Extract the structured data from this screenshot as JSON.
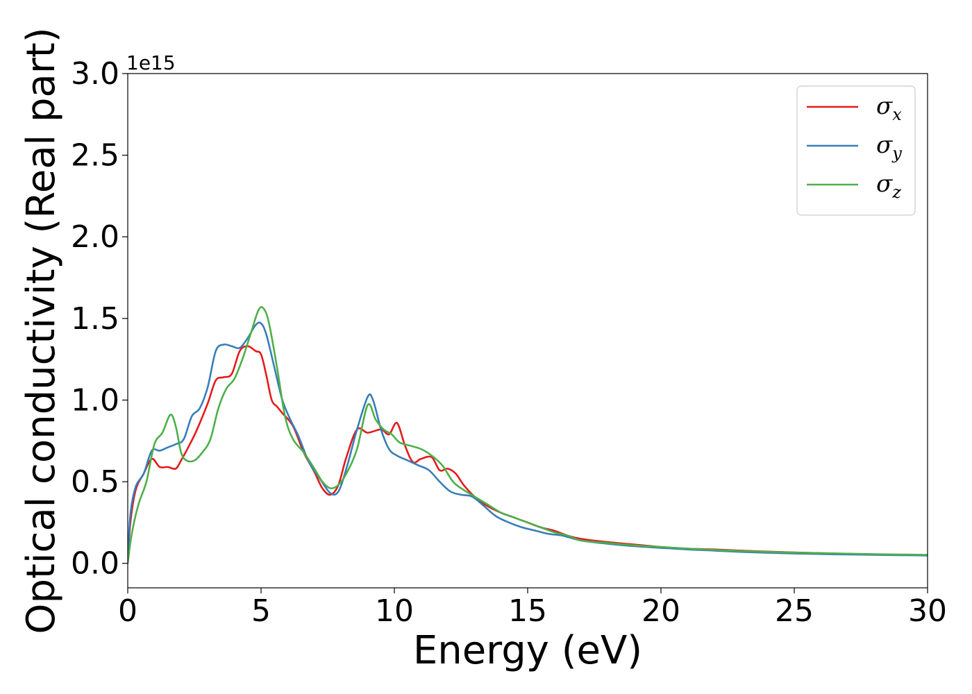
{
  "chart_data": {
    "type": "line",
    "title": "",
    "xlabel": "Energy (eV)",
    "ylabel": "Optical conductivity (Real part)",
    "y_offset_label": "1e15",
    "xlim": [
      0,
      30
    ],
    "ylim": [
      -0.15,
      3.0
    ],
    "x_ticks": [
      0,
      5,
      10,
      15,
      20,
      25,
      30
    ],
    "x_tick_labels": [
      "0",
      "5",
      "10",
      "15",
      "20",
      "25",
      "30"
    ],
    "y_ticks": [
      0.0,
      0.5,
      1.0,
      1.5,
      2.0,
      2.5,
      3.0
    ],
    "y_tick_labels": [
      "0.0",
      "0.5",
      "1.0",
      "1.5",
      "2.0",
      "2.5",
      "3.0"
    ],
    "grid": false,
    "legend_position": "top-right",
    "series": [
      {
        "name": "σx",
        "symbol": "σ",
        "subscript": "x",
        "color": "#e41a1c",
        "x": [
          0,
          0.1,
          0.3,
          0.6,
          0.9,
          1.2,
          1.5,
          1.8,
          2.0,
          2.3,
          2.6,
          3.0,
          3.3,
          3.6,
          3.9,
          4.2,
          4.5,
          4.8,
          5.0,
          5.2,
          5.4,
          5.6,
          5.8,
          6.2,
          6.6,
          7.0,
          7.3,
          7.6,
          7.9,
          8.2,
          8.6,
          9.0,
          9.5,
          9.8,
          10.1,
          10.4,
          10.7,
          11.0,
          11.4,
          11.7,
          12.0,
          12.3,
          12.6,
          13.0,
          13.5,
          14.0,
          14.5,
          15.0,
          15.5,
          16.0,
          16.5,
          17.0,
          18.0,
          19.0,
          20.0,
          21.0,
          22.0,
          23.0,
          24.0,
          25.0,
          26.0,
          27.0,
          28.0,
          29.0,
          30.0
        ],
        "values": [
          0.0,
          0.25,
          0.45,
          0.55,
          0.64,
          0.59,
          0.59,
          0.58,
          0.63,
          0.72,
          0.82,
          0.98,
          1.12,
          1.14,
          1.16,
          1.3,
          1.33,
          1.3,
          1.28,
          1.15,
          1.0,
          0.96,
          0.92,
          0.84,
          0.68,
          0.56,
          0.46,
          0.42,
          0.48,
          0.65,
          0.82,
          0.8,
          0.82,
          0.79,
          0.86,
          0.72,
          0.62,
          0.64,
          0.65,
          0.57,
          0.58,
          0.55,
          0.48,
          0.41,
          0.35,
          0.31,
          0.28,
          0.25,
          0.22,
          0.2,
          0.17,
          0.15,
          0.13,
          0.115,
          0.1,
          0.09,
          0.085,
          0.078,
          0.072,
          0.067,
          0.062,
          0.058,
          0.055,
          0.052,
          0.05
        ]
      },
      {
        "name": "σy",
        "symbol": "σ",
        "subscript": "y",
        "color": "#377eb8",
        "x": [
          0,
          0.1,
          0.3,
          0.6,
          0.9,
          1.2,
          1.5,
          1.8,
          2.1,
          2.4,
          2.7,
          3.0,
          3.3,
          3.6,
          3.9,
          4.2,
          4.5,
          4.8,
          5.0,
          5.2,
          5.5,
          5.8,
          6.1,
          6.4,
          6.8,
          7.2,
          7.6,
          7.9,
          8.2,
          8.6,
          9.0,
          9.2,
          9.5,
          9.8,
          10.1,
          10.5,
          10.9,
          11.3,
          11.7,
          12.1,
          12.5,
          12.9,
          13.3,
          13.8,
          14.3,
          14.8,
          15.3,
          15.8,
          16.3,
          17.0,
          18.0,
          19.0,
          20.0,
          21.0,
          22.0,
          23.0,
          24.0,
          25.0,
          26.0,
          27.0,
          28.0,
          29.0,
          30.0
        ],
        "values": [
          0.0,
          0.3,
          0.47,
          0.55,
          0.69,
          0.69,
          0.71,
          0.73,
          0.76,
          0.9,
          0.95,
          1.08,
          1.3,
          1.34,
          1.33,
          1.32,
          1.38,
          1.46,
          1.47,
          1.4,
          1.2,
          1.0,
          0.88,
          0.78,
          0.62,
          0.52,
          0.43,
          0.44,
          0.58,
          0.82,
          1.02,
          1.0,
          0.82,
          0.7,
          0.66,
          0.63,
          0.6,
          0.57,
          0.5,
          0.44,
          0.42,
          0.41,
          0.36,
          0.29,
          0.25,
          0.22,
          0.2,
          0.18,
          0.17,
          0.14,
          0.12,
          0.105,
          0.095,
          0.085,
          0.078,
          0.07,
          0.065,
          0.06,
          0.057,
          0.054,
          0.052,
          0.05,
          0.048
        ]
      },
      {
        "name": "σz",
        "symbol": "σ",
        "subscript": "z",
        "color": "#4daf4a",
        "x": [
          0,
          0.15,
          0.4,
          0.7,
          1.0,
          1.3,
          1.6,
          1.8,
          2.0,
          2.2,
          2.5,
          2.8,
          3.1,
          3.4,
          3.7,
          4.0,
          4.3,
          4.6,
          4.9,
          5.1,
          5.3,
          5.6,
          5.9,
          6.2,
          6.6,
          7.0,
          7.3,
          7.6,
          7.9,
          8.2,
          8.6,
          9.0,
          9.3,
          9.6,
          9.9,
          10.2,
          10.6,
          11.0,
          11.4,
          11.8,
          12.2,
          12.6,
          13.0,
          13.5,
          14.0,
          14.5,
          15.0,
          15.5,
          16.0,
          16.5,
          17.0,
          18.0,
          19.0,
          20.0,
          21.0,
          22.0,
          23.0,
          24.0,
          25.0,
          26.0,
          27.0,
          28.0,
          29.0,
          30.0
        ],
        "values": [
          0.0,
          0.18,
          0.36,
          0.5,
          0.73,
          0.8,
          0.91,
          0.84,
          0.68,
          0.63,
          0.63,
          0.68,
          0.76,
          0.95,
          1.07,
          1.13,
          1.25,
          1.4,
          1.55,
          1.56,
          1.47,
          1.2,
          0.9,
          0.76,
          0.68,
          0.58,
          0.5,
          0.46,
          0.48,
          0.55,
          0.7,
          0.97,
          0.88,
          0.82,
          0.79,
          0.74,
          0.72,
          0.7,
          0.66,
          0.6,
          0.5,
          0.45,
          0.41,
          0.36,
          0.31,
          0.28,
          0.25,
          0.22,
          0.19,
          0.17,
          0.14,
          0.125,
          0.11,
          0.1,
          0.09,
          0.082,
          0.075,
          0.07,
          0.066,
          0.062,
          0.059,
          0.056,
          0.054,
          0.052
        ]
      }
    ]
  }
}
